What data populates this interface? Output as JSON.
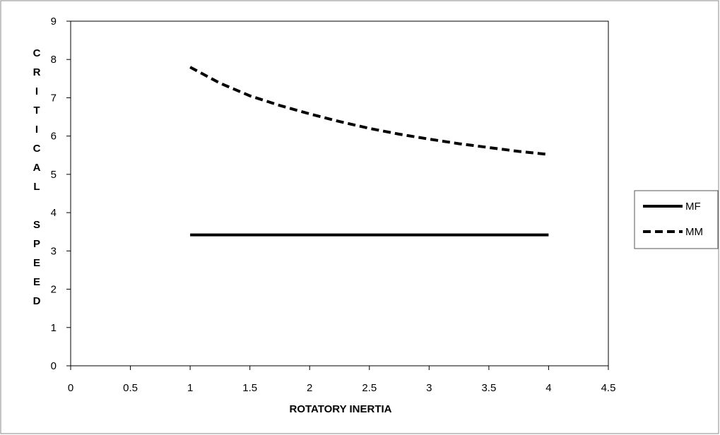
{
  "chart_data": {
    "type": "line",
    "title": "",
    "xlabel": "ROTATORY INERTIA",
    "ylabel": "CRITICAL SPEED",
    "xlim": [
      0,
      4.5
    ],
    "ylim": [
      0,
      9
    ],
    "x_ticks": [
      "0",
      "0.5",
      "1",
      "1.5",
      "2",
      "2.5",
      "3",
      "3.5",
      "4",
      "4.5"
    ],
    "y_ticks": [
      "0",
      "1",
      "2",
      "3",
      "4",
      "5",
      "6",
      "7",
      "8",
      "9"
    ],
    "grid": false,
    "legend_position": "right",
    "series": [
      {
        "name": "MF",
        "style": "solid",
        "color": "#000000",
        "x": [
          1,
          1.5,
          2,
          2.5,
          3,
          3.5,
          4
        ],
        "y": [
          3.42,
          3.42,
          3.42,
          3.42,
          3.42,
          3.42,
          3.42
        ]
      },
      {
        "name": "MM",
        "style": "dashed",
        "color": "#000000",
        "x": [
          1,
          1.25,
          1.5,
          1.75,
          2,
          2.25,
          2.5,
          2.75,
          3,
          3.25,
          3.5,
          3.75,
          4
        ],
        "y": [
          7.8,
          7.38,
          7.05,
          6.8,
          6.58,
          6.38,
          6.2,
          6.05,
          5.92,
          5.8,
          5.7,
          5.6,
          5.52
        ]
      }
    ]
  }
}
